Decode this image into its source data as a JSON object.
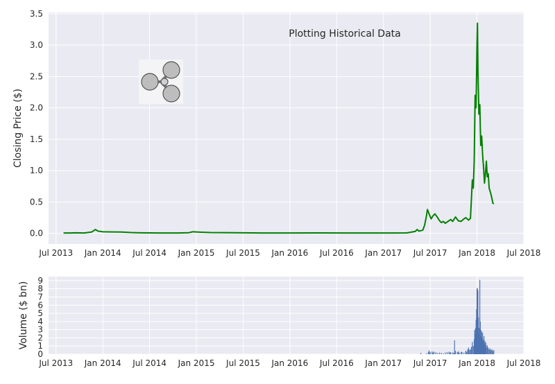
{
  "chart_data": [
    {
      "type": "line",
      "title": "",
      "annotation": "Plotting Historical Data",
      "xlabel": "",
      "ylabel": "Closing Price ($)",
      "ylim": [
        -0.17,
        3.52
      ],
      "xlim": [
        2013.42,
        2018.5
      ],
      "yticks": [
        0.0,
        0.5,
        1.0,
        1.5,
        2.0,
        2.5,
        3.0,
        3.5
      ],
      "ytick_labels": [
        "0.0",
        "0.5",
        "1.0",
        "1.5",
        "2.0",
        "2.5",
        "3.0",
        "3.5"
      ],
      "xticks": [
        2013.5,
        2014.0,
        2014.5,
        2015.0,
        2015.5,
        2016.0,
        2016.5,
        2017.0,
        2017.5,
        2018.0,
        2018.5
      ],
      "xtick_labels": [
        "Jul 2013",
        "Jan 2014",
        "Jul 2014",
        "Jan 2015",
        "Jul 2015",
        "Jan 2016",
        "Jul 2016",
        "Jan 2017",
        "Jul 2017",
        "Jan 2018",
        "Jul 2018"
      ],
      "series": [
        {
          "name": "Closing Price",
          "color": "#008000",
          "points": [
            [
              2013.58,
              0.006
            ],
            [
              2013.65,
              0.005
            ],
            [
              2013.72,
              0.008
            ],
            [
              2013.8,
              0.006
            ],
            [
              2013.88,
              0.02
            ],
            [
              2013.92,
              0.06
            ],
            [
              2013.95,
              0.035
            ],
            [
              2014.0,
              0.025
            ],
            [
              2014.1,
              0.022
            ],
            [
              2014.2,
              0.02
            ],
            [
              2014.3,
              0.012
            ],
            [
              2014.4,
              0.008
            ],
            [
              2014.6,
              0.005
            ],
            [
              2014.8,
              0.005
            ],
            [
              2014.92,
              0.01
            ],
            [
              2014.96,
              0.025
            ],
            [
              2015.05,
              0.018
            ],
            [
              2015.15,
              0.012
            ],
            [
              2015.4,
              0.009
            ],
            [
              2015.7,
              0.006
            ],
            [
              2016.0,
              0.006
            ],
            [
              2016.3,
              0.007
            ],
            [
              2016.6,
              0.006
            ],
            [
              2016.9,
              0.006
            ],
            [
              2017.1,
              0.006
            ],
            [
              2017.25,
              0.007
            ],
            [
              2017.34,
              0.03
            ],
            [
              2017.36,
              0.06
            ],
            [
              2017.38,
              0.035
            ],
            [
              2017.42,
              0.05
            ],
            [
              2017.44,
              0.13
            ],
            [
              2017.46,
              0.28
            ],
            [
              2017.47,
              0.38
            ],
            [
              2017.49,
              0.3
            ],
            [
              2017.51,
              0.23
            ],
            [
              2017.53,
              0.28
            ],
            [
              2017.55,
              0.31
            ],
            [
              2017.57,
              0.27
            ],
            [
              2017.6,
              0.2
            ],
            [
              2017.62,
              0.17
            ],
            [
              2017.64,
              0.19
            ],
            [
              2017.66,
              0.16
            ],
            [
              2017.7,
              0.2
            ],
            [
              2017.72,
              0.22
            ],
            [
              2017.74,
              0.19
            ],
            [
              2017.77,
              0.26
            ],
            [
              2017.8,
              0.2
            ],
            [
              2017.83,
              0.19
            ],
            [
              2017.86,
              0.23
            ],
            [
              2017.88,
              0.25
            ],
            [
              2017.91,
              0.21
            ],
            [
              2017.93,
              0.24
            ],
            [
              2017.95,
              0.85
            ],
            [
              2017.96,
              0.72
            ],
            [
              2017.97,
              1.15
            ],
            [
              2017.98,
              2.2
            ],
            [
              2017.99,
              2.0
            ],
            [
              2018.0,
              3.0
            ],
            [
              2018.005,
              3.35
            ],
            [
              2018.01,
              2.6
            ],
            [
              2018.02,
              1.9
            ],
            [
              2018.03,
              2.05
            ],
            [
              2018.04,
              1.4
            ],
            [
              2018.05,
              1.55
            ],
            [
              2018.06,
              1.25
            ],
            [
              2018.07,
              1.05
            ],
            [
              2018.08,
              0.8
            ],
            [
              2018.09,
              0.95
            ],
            [
              2018.1,
              1.15
            ],
            [
              2018.11,
              0.9
            ],
            [
              2018.12,
              0.95
            ],
            [
              2018.13,
              0.72
            ],
            [
              2018.15,
              0.62
            ],
            [
              2018.16,
              0.55
            ],
            [
              2018.17,
              0.48
            ],
            [
              2018.18,
              0.47
            ]
          ]
        }
      ]
    },
    {
      "type": "bar",
      "title": "",
      "xlabel": "",
      "ylabel": "Volume ($ bn)",
      "ylim": [
        0,
        9.5
      ],
      "xlim": [
        2013.42,
        2018.5
      ],
      "yticks": [
        0,
        1,
        2,
        3,
        4,
        5,
        6,
        7,
        8,
        9
      ],
      "ytick_labels": [
        "0",
        "1",
        "2",
        "3",
        "4",
        "5",
        "6",
        "7",
        "8",
        "9"
      ],
      "xticks": [
        2013.5,
        2014.0,
        2014.5,
        2015.0,
        2015.5,
        2016.0,
        2016.5,
        2017.0,
        2017.5,
        2018.0,
        2018.5
      ],
      "xtick_labels": [
        "Jul 2013",
        "Jan 2014",
        "Jul 2014",
        "Jan 2015",
        "Jul 2015",
        "Jan 2016",
        "Jul 2016",
        "Jan 2017",
        "Jul 2017",
        "Jan 2018",
        "Jul 2018"
      ],
      "series": [
        {
          "name": "Volume",
          "color": "#4c72b0",
          "points": [
            [
              2017.4,
              0.15
            ],
            [
              2017.46,
              0.1
            ],
            [
              2017.48,
              0.3
            ],
            [
              2017.49,
              0.45
            ],
            [
              2017.5,
              0.25
            ],
            [
              2017.52,
              0.35
            ],
            [
              2017.53,
              0.2
            ],
            [
              2017.54,
              0.3
            ],
            [
              2017.56,
              0.25
            ],
            [
              2017.58,
              0.15
            ],
            [
              2017.6,
              0.2
            ],
            [
              2017.62,
              0.15
            ],
            [
              2017.64,
              0.1
            ],
            [
              2017.66,
              0.2
            ],
            [
              2017.68,
              0.25
            ],
            [
              2017.7,
              0.3
            ],
            [
              2017.71,
              0.2
            ],
            [
              2017.72,
              0.25
            ],
            [
              2017.74,
              0.2
            ],
            [
              2017.75,
              0.15
            ],
            [
              2017.76,
              1.7
            ],
            [
              2017.77,
              0.4
            ],
            [
              2017.79,
              0.25
            ],
            [
              2017.8,
              0.35
            ],
            [
              2017.81,
              0.2
            ],
            [
              2017.83,
              0.3
            ],
            [
              2017.84,
              0.25
            ],
            [
              2017.86,
              0.2
            ],
            [
              2017.88,
              0.4
            ],
            [
              2017.89,
              0.3
            ],
            [
              2017.9,
              0.6
            ],
            [
              2017.91,
              0.8
            ],
            [
              2017.92,
              0.5
            ],
            [
              2017.93,
              0.6
            ],
            [
              2017.94,
              0.9
            ],
            [
              2017.95,
              1.5
            ],
            [
              2017.96,
              1.0
            ],
            [
              2017.97,
              1.8
            ],
            [
              2017.975,
              3.0
            ],
            [
              2017.98,
              2.5
            ],
            [
              2017.985,
              3.2
            ],
            [
              2017.99,
              4.2
            ],
            [
              2017.995,
              5.5
            ],
            [
              2018.0,
              8.0
            ],
            [
              2018.005,
              8.1
            ],
            [
              2018.01,
              7.8
            ],
            [
              2018.015,
              4.5
            ],
            [
              2018.02,
              3.2
            ],
            [
              2018.025,
              2.5
            ],
            [
              2018.03,
              9.1
            ],
            [
              2018.035,
              4.0
            ],
            [
              2018.04,
              3.0
            ],
            [
              2018.045,
              2.2
            ],
            [
              2018.05,
              2.8
            ],
            [
              2018.055,
              2.0
            ],
            [
              2018.06,
              2.6
            ],
            [
              2018.065,
              1.8
            ],
            [
              2018.07,
              1.5
            ],
            [
              2018.075,
              2.2
            ],
            [
              2018.08,
              1.2
            ],
            [
              2018.085,
              1.6
            ],
            [
              2018.09,
              1.0
            ],
            [
              2018.095,
              1.4
            ],
            [
              2018.1,
              0.9
            ],
            [
              2018.11,
              1.1
            ],
            [
              2018.12,
              0.8
            ],
            [
              2018.13,
              0.6
            ],
            [
              2018.14,
              0.7
            ],
            [
              2018.15,
              0.5
            ],
            [
              2018.16,
              0.6
            ],
            [
              2018.17,
              0.4
            ],
            [
              2018.18,
              0.5
            ]
          ]
        }
      ]
    }
  ],
  "colors": {
    "axes_background": "#eaeaf2",
    "grid": "#ffffff",
    "line": "#008000",
    "bar": "#4c72b0",
    "text": "#262626"
  },
  "logo": {
    "icon": "ripple-logo-icon"
  }
}
